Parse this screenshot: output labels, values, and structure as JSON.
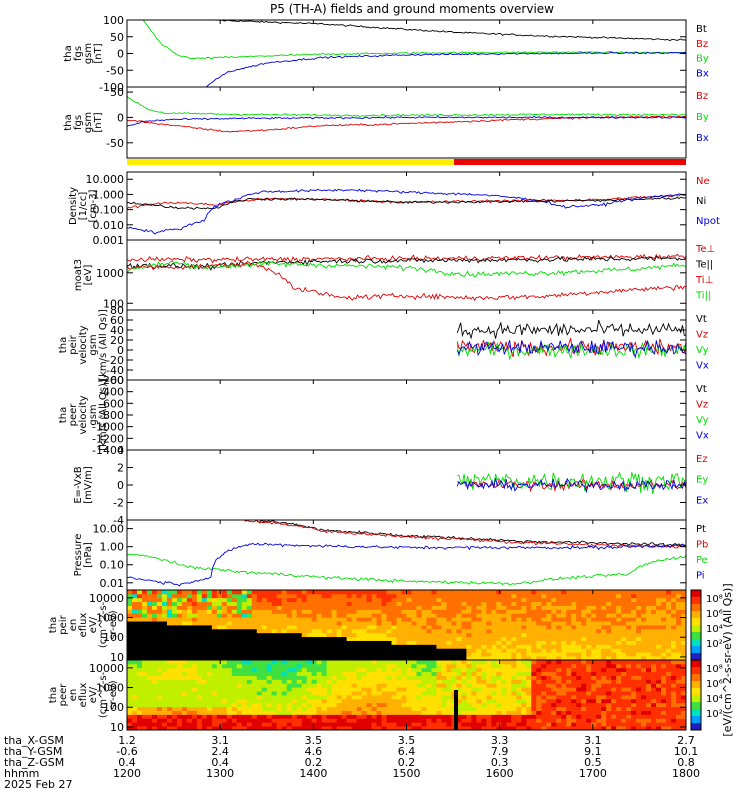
{
  "title": "P5 (TH-A) fields and ground moments overview",
  "colors": {
    "black": "#000000",
    "red": "#e00000",
    "green": "#00dd00",
    "blue": "#0000dd",
    "yellow": "#ffee00",
    "bar_red": "#ee0000"
  },
  "chart_data": [
    {
      "type": "line",
      "panel": "fgs_gsm",
      "ylabel_lines": [
        "tha",
        "fgs",
        "gsm",
        "[nT]"
      ],
      "ylim": [
        -100,
        100
      ],
      "yticks": [
        "100",
        "50",
        "0",
        "-50",
        "-100"
      ],
      "tick_values": [
        100,
        50,
        0,
        -50,
        -100
      ],
      "series": [
        {
          "name": "Bt",
          "color": "black"
        },
        {
          "name": "Bz",
          "color": "red"
        },
        {
          "name": "By",
          "color": "green"
        },
        {
          "name": "Bx",
          "color": "blue"
        }
      ]
    },
    {
      "type": "line",
      "panel": "fgs_gsm_zoom",
      "ylabel_lines": [
        "tha",
        "fgs",
        "gsm",
        "[nT]"
      ],
      "ylim": [
        -80,
        60
      ],
      "yticks": [
        "50",
        "0",
        "-50"
      ],
      "tick_values": [
        50,
        0,
        -50
      ],
      "series": [
        {
          "name": "Bz",
          "color": "red"
        },
        {
          "name": "By",
          "color": "green"
        },
        {
          "name": "Bx",
          "color": "blue"
        }
      ]
    },
    {
      "type": "line",
      "panel": "density",
      "scale": "log",
      "ylabel_lines": [
        "Density",
        "[1/cc]",
        "[cm-3]"
      ],
      "ylim": [
        0.001,
        30
      ],
      "yticks": [
        "10.000",
        "1.000",
        "0.100",
        "0.010",
        "0.001"
      ],
      "tick_values": [
        10,
        1,
        0.1,
        0.01,
        0.001
      ],
      "series": [
        {
          "name": "Ne",
          "color": "red"
        },
        {
          "name": "Ni",
          "color": "black"
        },
        {
          "name": "Npot",
          "color": "blue"
        }
      ]
    },
    {
      "type": "line",
      "panel": "temperature",
      "scale": "log",
      "ylabel_lines": [
        "moat3",
        "[eV]"
      ],
      "ylim": [
        60,
        12000
      ],
      "yticks": [
        "1000",
        "100"
      ],
      "tick_values": [
        1000,
        100
      ],
      "series": [
        {
          "name": "Te⊥",
          "color": "red"
        },
        {
          "name": "Te||",
          "color": "black"
        },
        {
          "name": "Ti⊥",
          "color": "red"
        },
        {
          "name": "Ti||",
          "color": "green"
        }
      ]
    },
    {
      "type": "line",
      "panel": "peir_velocity",
      "ylabel_lines": [
        "tha",
        "peir",
        "velocity",
        "gsm",
        "[km/s (All Qs)]"
      ],
      "ylim": [
        -60,
        80
      ],
      "yticks": [
        "80",
        "60",
        "40",
        "20",
        "0",
        "-20",
        "-40",
        "-60"
      ],
      "tick_values": [
        80,
        60,
        40,
        20,
        0,
        -20,
        -40,
        -60
      ],
      "series": [
        {
          "name": "Vt",
          "color": "black"
        },
        {
          "name": "Vz",
          "color": "red"
        },
        {
          "name": "Vy",
          "color": "green"
        },
        {
          "name": "Vx",
          "color": "blue"
        }
      ]
    },
    {
      "type": "line",
      "panel": "peer_velocity",
      "ylabel_lines": [
        "tha",
        "peer",
        "velocity",
        "gsm",
        "[km/s (All Qs)]"
      ],
      "ylim": [
        -1400,
        -200
      ],
      "yticks": [
        "-200",
        "-400",
        "-600",
        "-800",
        "-1000",
        "-1200",
        "-1400"
      ],
      "tick_values": [
        -200,
        -400,
        -600,
        -800,
        -1000,
        -1200,
        -1400
      ],
      "series": [
        {
          "name": "Vt",
          "color": "black"
        },
        {
          "name": "Vz",
          "color": "red"
        },
        {
          "name": "Vy",
          "color": "green"
        },
        {
          "name": "Vx",
          "color": "blue"
        }
      ]
    },
    {
      "type": "line",
      "panel": "efield",
      "ylabel_lines": [
        "E=-VxB",
        "[mV/m]"
      ],
      "ylim": [
        -4,
        4
      ],
      "yticks": [
        "4",
        "2",
        "0",
        "-2",
        "-4"
      ],
      "tick_values": [
        4,
        2,
        0,
        -2,
        -4
      ],
      "series": [
        {
          "name": "Ez",
          "color": "red"
        },
        {
          "name": "Ey",
          "color": "green"
        },
        {
          "name": "Ex",
          "color": "blue"
        }
      ]
    },
    {
      "type": "line",
      "panel": "pressure",
      "scale": "log",
      "ylabel_lines": [
        "Pressure",
        "[nPa]"
      ],
      "ylim": [
        0.004,
        30
      ],
      "yticks": [
        "10.00",
        "1.00",
        "0.10",
        "0.01"
      ],
      "tick_values": [
        10,
        1,
        0.1,
        0.01
      ],
      "series": [
        {
          "name": "Pt",
          "color": "black"
        },
        {
          "name": "Pb",
          "color": "red"
        },
        {
          "name": "Pe",
          "color": "green"
        },
        {
          "name": "Pi",
          "color": "blue"
        }
      ]
    },
    {
      "type": "heatmap",
      "panel": "peir_eflux",
      "scale": "log",
      "ylabel_lines": [
        "tha",
        "peir",
        "en",
        "eflux",
        "eV/",
        "(cm^2-s-",
        "sr-eV)"
      ],
      "ylim": [
        7,
        25000
      ],
      "yticks": [
        "10000",
        "1000",
        "100",
        "10"
      ],
      "tick_values": [
        10000,
        1000,
        100,
        10
      ]
    },
    {
      "type": "heatmap",
      "panel": "peer_eflux",
      "scale": "log",
      "ylabel_lines": [
        "tha",
        "peer",
        "en",
        "eflux",
        "eV/",
        "(cm^2-s-",
        "sr-eV)"
      ],
      "ylim": [
        7,
        25000
      ],
      "yticks": [
        "10000",
        "1000",
        "100",
        "10"
      ],
      "tick_values": [
        10000,
        1000,
        100,
        10
      ]
    }
  ],
  "colorbar": {
    "label": "[eV/(cm^2-s-sr-eV) (All Qs)]",
    "ticks": [
      "10⁸",
      "10⁶",
      "10⁴",
      "10²"
    ],
    "ticks_lower": [
      "10⁸",
      "10⁶",
      "10⁴",
      "10²"
    ]
  },
  "xaxis": {
    "row_labels": [
      "tha_X-GSM",
      "tha_Y-GSM",
      "tha_Z-GSM",
      "hhmm",
      "2025 Feb 27"
    ],
    "times": [
      1200,
      1300,
      1400,
      1500,
      1600,
      1700,
      1800
    ],
    "x_gsm": [
      "1.2",
      "3.1",
      "3.5",
      "3.5",
      "3.3",
      "3.1",
      "2.7"
    ],
    "y_gsm": [
      "-0.6",
      "2.4",
      "4.6",
      "6.4",
      "7.9",
      "9.1",
      "10.1"
    ],
    "z_gsm": [
      "0.4",
      "0.4",
      "0.2",
      "0.2",
      "0.3",
      "0.5",
      "0.8"
    ],
    "hhmm": [
      "1200",
      "1300",
      "1400",
      "1500",
      "1600",
      "1700",
      "1800"
    ]
  }
}
